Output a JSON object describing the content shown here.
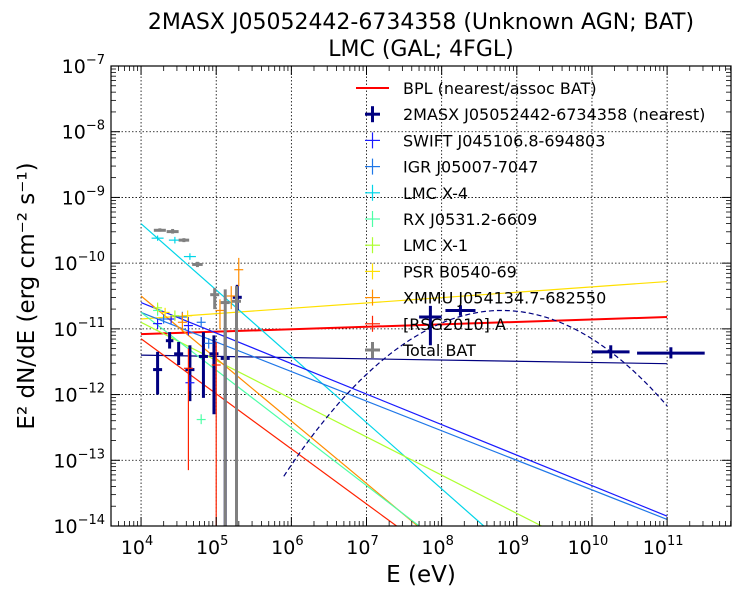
{
  "chart_data": {
    "type": "scatter",
    "title_line1": "2MASX J05052442-6734358 (Unknown AGN; BAT)",
    "title_line2": "LMC (GAL; 4FGL)",
    "xlabel": "E (eV)",
    "ylabel": "E² dN/dE (erg cm⁻² s⁻¹)",
    "xscale": "log",
    "yscale": "log",
    "xlim_exp": [
      3.6,
      11.85
    ],
    "ylim_exp": [
      -14,
      -7
    ],
    "x_ticks": [
      {
        "exp": 4,
        "label": "10",
        "sup": "4"
      },
      {
        "exp": 5,
        "label": "10",
        "sup": "5"
      },
      {
        "exp": 6,
        "label": "10",
        "sup": "6"
      },
      {
        "exp": 7,
        "label": "10",
        "sup": "7"
      },
      {
        "exp": 8,
        "label": "10",
        "sup": "8"
      },
      {
        "exp": 9,
        "label": "10",
        "sup": "9"
      },
      {
        "exp": 10,
        "label": "10",
        "sup": "10"
      },
      {
        "exp": 11,
        "label": "10",
        "sup": "11"
      }
    ],
    "y_ticks": [
      {
        "exp": -14,
        "label": "10",
        "sup": "−14"
      },
      {
        "exp": -13,
        "label": "10",
        "sup": "−13"
      },
      {
        "exp": -12,
        "label": "10",
        "sup": "−12"
      },
      {
        "exp": -11,
        "label": "10",
        "sup": "−11"
      },
      {
        "exp": -10,
        "label": "10",
        "sup": "−10"
      },
      {
        "exp": -9,
        "label": "10",
        "sup": "−9"
      },
      {
        "exp": -8,
        "label": "10",
        "sup": "−8"
      },
      {
        "exp": -7,
        "label": "10",
        "sup": "−7"
      }
    ],
    "grid": true,
    "legend_position": "top-right",
    "legend": [
      {
        "label": "BPL (nearest/assoc BAT)",
        "color": "#ff0000",
        "style": "line"
      },
      {
        "label": "2MASX J05052442-6734358 (nearest)",
        "color": "#000080",
        "style": "errbar-bold"
      },
      {
        "label": "SWIFT J045106.8-694803",
        "color": "#1a1aff",
        "style": "errbar"
      },
      {
        "label": "IGR J05007-7047",
        "color": "#1f77e8",
        "style": "errbar"
      },
      {
        "label": "LMC X-4",
        "color": "#00d5e8",
        "style": "errbar"
      },
      {
        "label": "RX J0531.2-6609",
        "color": "#4dffa6",
        "style": "errbar"
      },
      {
        "label": "LMC X-1",
        "color": "#adff2f",
        "style": "errbar"
      },
      {
        "label": "PSR B0540-69",
        "color": "#ffe000",
        "style": "errbar"
      },
      {
        "label": "XMMU J054134.7-682550",
        "color": "#ff8c00",
        "style": "errbar"
      },
      {
        "label": "[RSG2010] A",
        "color": "#ff2200",
        "style": "errbar"
      },
      {
        "label": "Total BAT",
        "color": "#808080",
        "style": "errbar-bold"
      }
    ],
    "lines": [
      {
        "name": "BPL (nearest/assoc BAT)",
        "color": "#ff0000",
        "width": 2,
        "points": [
          [
            4,
            -11.08
          ],
          [
            11,
            -10.82
          ]
        ]
      },
      {
        "name": "2MASX J05052442-6734358 (nearest)",
        "color": "#000080",
        "width": 1.2,
        "points": [
          [
            4,
            -11.4
          ],
          [
            11,
            -11.53
          ]
        ]
      },
      {
        "name": "PSR B0540-69",
        "color": "#ffe000",
        "width": 1.2,
        "points": [
          [
            4,
            -10.85
          ],
          [
            11,
            -10.28
          ]
        ]
      },
      {
        "name": "LMC X-4",
        "color": "#00d5e8",
        "width": 1.2,
        "points": [
          [
            4,
            -9.4
          ],
          [
            8.56,
            -14
          ]
        ]
      },
      {
        "name": "SWIFT J045106.8-694803",
        "color": "#1a1aff",
        "width": 1.2,
        "points": [
          [
            4,
            -10.6
          ],
          [
            11,
            -13.85
          ]
        ]
      },
      {
        "name": "IGR J05007-7047",
        "color": "#1f77e8",
        "width": 1.2,
        "points": [
          [
            4,
            -10.75
          ],
          [
            11,
            -13.9
          ]
        ]
      },
      {
        "name": "LMC X-1",
        "color": "#adff2f",
        "width": 1.2,
        "points": [
          [
            4,
            -10.9
          ],
          [
            9.33,
            -14
          ]
        ]
      },
      {
        "name": "XMMU J054134.7-682550",
        "color": "#ff8c00",
        "width": 1.2,
        "points": [
          [
            4,
            -10.5
          ],
          [
            7.68,
            -14
          ]
        ]
      },
      {
        "name": "RX J0531.2-6609",
        "color": "#4dffa6",
        "width": 1.2,
        "points": [
          [
            4,
            -10.75
          ],
          [
            7.7,
            -14
          ]
        ]
      },
      {
        "name": "[RSG2010] A",
        "color": "#ff2200",
        "width": 1.2,
        "points": [
          [
            4,
            -11.15
          ],
          [
            7.4,
            -14
          ]
        ]
      }
    ],
    "dashed_curve": {
      "name": "4FGL LMC model",
      "color": "#000080",
      "peak_x_exp": 8.8,
      "peak_y_exp": -10.72,
      "curvature": 0.3,
      "x_range_exp": [
        5.9,
        11
      ]
    },
    "points": [
      {
        "series": "2MASX J05052442-6734358 (nearest)",
        "color": "#000080",
        "bold": true,
        "x": 4.22,
        "y": -11.62,
        "xerr": 0.06,
        "ylo": -12.0,
        "yhi": -11.35
      },
      {
        "series": "2MASX J05052442-6734358 (nearest)",
        "color": "#000080",
        "bold": true,
        "x": 4.38,
        "y": -11.18,
        "xerr": 0.05,
        "ylo": -11.3,
        "yhi": -11.05
      },
      {
        "series": "2MASX J05052442-6734358 (nearest)",
        "color": "#000080",
        "bold": true,
        "x": 4.5,
        "y": -11.38,
        "xerr": 0.06,
        "ylo": -11.55,
        "yhi": -11.2
      },
      {
        "series": "2MASX J05052442-6734358 (nearest)",
        "color": "#000080",
        "bold": true,
        "x": 4.65,
        "y": -11.62,
        "xerr": 0.06,
        "ylo": -12.1,
        "yhi": -11.25
      },
      {
        "series": "2MASX J05052442-6734358 (nearest)",
        "color": "#000080",
        "bold": true,
        "x": 4.83,
        "y": -11.42,
        "xerr": 0.06,
        "ylo": -12.05,
        "yhi": -11.05
      },
      {
        "series": "2MASX J05052442-6734358 (nearest)",
        "color": "#000080",
        "bold": true,
        "x": 4.97,
        "y": -11.38,
        "xerr": 0.06,
        "ylo": -12.3,
        "yhi": -11.1
      },
      {
        "series": "2MASX J05052442-6734358 (nearest)",
        "color": "#000080",
        "bold": true,
        "x": 5.12,
        "y": -11.45,
        "xerr": 0.06,
        "ylo": -14,
        "yhi": -11.05
      },
      {
        "series": "2MASX J05052442-6734358 (nearest)",
        "color": "#000080",
        "bold": true,
        "x": 5.28,
        "y": -10.52,
        "xerr": 0.06,
        "ylo": -10.72,
        "yhi": -10.33
      },
      {
        "series": "2MASX J05052442-6734358 (nearest)",
        "color": "#000080",
        "bold": true,
        "x": 7.85,
        "y": -10.82,
        "xerr": 0.15,
        "ylo": -11.25,
        "yhi": -10.65
      },
      {
        "series": "2MASX J05052442-6734358 (nearest)",
        "color": "#000080",
        "bold": true,
        "x": 8.25,
        "y": -10.72,
        "xerr": 0.2,
        "ylo": -10.8,
        "yhi": -10.64
      },
      {
        "series": "2MASX J05052442-6734358 (nearest)",
        "color": "#000080",
        "bold": true,
        "x": 10.25,
        "y": -11.35,
        "xerr": 0.25,
        "ylo": -11.45,
        "yhi": -11.25
      },
      {
        "series": "2MASX J05052442-6734358 (nearest)",
        "color": "#000080",
        "bold": true,
        "x": 11.05,
        "y": -11.37,
        "xerr": 0.45,
        "ylo": -11.45,
        "yhi": -11.28
      },
      {
        "series": "SWIFT J045106.8-694803",
        "color": "#1a1aff",
        "bold": false,
        "x": 4.22,
        "y": -10.92,
        "xerr": 0.06,
        "ylo": -11.0,
        "yhi": -10.85
      },
      {
        "series": "SWIFT J045106.8-694803",
        "color": "#1a1aff",
        "bold": false,
        "x": 4.4,
        "y": -10.85,
        "xerr": 0.06,
        "ylo": -10.92,
        "yhi": -10.78
      },
      {
        "series": "SWIFT J045106.8-694803",
        "color": "#1a1aff",
        "bold": false,
        "x": 4.63,
        "y": -10.95,
        "xerr": 0.06,
        "ylo": -11.1,
        "yhi": -10.82
      },
      {
        "series": "SWIFT J045106.8-694803",
        "color": "#1a1aff",
        "bold": false,
        "x": 4.65,
        "y": -11.82,
        "xerr": 0.06,
        "ylo": -11.95,
        "yhi": -11.7
      },
      {
        "series": "IGR J05007-7047",
        "color": "#1f77e8",
        "bold": false,
        "x": 4.3,
        "y": -10.85,
        "xerr": 0.06,
        "ylo": -10.92,
        "yhi": -10.78
      },
      {
        "series": "IGR J05007-7047",
        "color": "#1f77e8",
        "bold": false,
        "x": 4.55,
        "y": -10.82,
        "xerr": 0.06,
        "ylo": -10.9,
        "yhi": -10.74
      },
      {
        "series": "IGR J05007-7047",
        "color": "#1f77e8",
        "bold": false,
        "x": 4.8,
        "y": -10.9,
        "xerr": 0.06,
        "ylo": -10.98,
        "yhi": -10.82
      },
      {
        "series": "IGR J05007-7047",
        "color": "#1f77e8",
        "bold": false,
        "x": 4.9,
        "y": -11.22,
        "xerr": 0.06,
        "ylo": -11.3,
        "yhi": -11.14
      },
      {
        "series": "LMC X-4",
        "color": "#00d5e8",
        "bold": false,
        "x": 4.22,
        "y": -9.62,
        "xerr": 0.08,
        "ylo": -9.66,
        "yhi": -9.58
      },
      {
        "series": "LMC X-4",
        "color": "#00d5e8",
        "bold": false,
        "x": 4.45,
        "y": -9.65,
        "xerr": 0.08,
        "ylo": -9.7,
        "yhi": -9.6
      },
      {
        "series": "LMC X-4",
        "color": "#00d5e8",
        "bold": false,
        "x": 4.65,
        "y": -9.9,
        "xerr": 0.08,
        "ylo": -9.95,
        "yhi": -9.85
      },
      {
        "series": "RX J0531.2-6609",
        "color": "#4dffa6",
        "bold": false,
        "x": 4.22,
        "y": -10.72,
        "xerr": 0.06,
        "ylo": -10.8,
        "yhi": -10.64
      },
      {
        "series": "RX J0531.2-6609",
        "color": "#4dffa6",
        "bold": false,
        "x": 4.8,
        "y": -12.38,
        "xerr": 0.06,
        "ylo": -12.45,
        "yhi": -12.3
      },
      {
        "series": "LMC X-1",
        "color": "#adff2f",
        "bold": false,
        "x": 4.22,
        "y": -10.68,
        "xerr": 0.06,
        "ylo": -10.75,
        "yhi": -10.6
      },
      {
        "series": "LMC X-1",
        "color": "#adff2f",
        "bold": false,
        "x": 4.45,
        "y": -10.8,
        "xerr": 0.06,
        "ylo": -10.88,
        "yhi": -10.72
      },
      {
        "series": "PSR B0540-69",
        "color": "#ffe000",
        "bold": false,
        "x": 4.32,
        "y": -10.75,
        "xerr": 0.06,
        "ylo": -10.82,
        "yhi": -10.68
      },
      {
        "series": "PSR B0540-69",
        "color": "#ffe000",
        "bold": false,
        "x": 4.62,
        "y": -10.8,
        "xerr": 0.06,
        "ylo": -10.88,
        "yhi": -10.72
      },
      {
        "series": "XMMU J054134.7-682550",
        "color": "#ff8c00",
        "bold": false,
        "x": 4.55,
        "y": -10.9,
        "xerr": 0.06,
        "ylo": -11.05,
        "yhi": -10.75
      },
      {
        "series": "XMMU J054134.7-682550",
        "color": "#ff8c00",
        "bold": false,
        "x": 5.05,
        "y": -10.72,
        "xerr": 0.06,
        "ylo": -11.0,
        "yhi": -10.55
      },
      {
        "series": "XMMU J054134.7-682550",
        "color": "#ff8c00",
        "bold": false,
        "x": 5.2,
        "y": -10.5,
        "xerr": 0.06,
        "ylo": -10.7,
        "yhi": -10.35
      },
      {
        "series": "XMMU J054134.7-682550",
        "color": "#ff8c00",
        "bold": false,
        "x": 5.3,
        "y": -10.1,
        "xerr": 0.06,
        "ylo": -10.35,
        "yhi": -9.92
      },
      {
        "series": "[RSG2010] A",
        "color": "#ff2200",
        "bold": false,
        "x": 4.63,
        "y": -11.6,
        "xerr": 0.06,
        "ylo": -13.15,
        "yhi": -11.3
      },
      {
        "series": "[RSG2010] A",
        "color": "#ff2200",
        "bold": false,
        "x": 5.0,
        "y": -11.55,
        "xerr": 0.06,
        "ylo": -14,
        "yhi": -11.2
      },
      {
        "series": "Total BAT",
        "color": "#808080",
        "bold": true,
        "x": 4.25,
        "y": -9.5,
        "xerr": 0.08,
        "ylo": -9.52,
        "yhi": -9.47
      },
      {
        "series": "Total BAT",
        "color": "#808080",
        "bold": true,
        "x": 4.42,
        "y": -9.52,
        "xerr": 0.08,
        "ylo": -9.55,
        "yhi": -9.48
      },
      {
        "series": "Total BAT",
        "color": "#808080",
        "bold": true,
        "x": 4.57,
        "y": -9.65,
        "xerr": 0.07,
        "ylo": -9.68,
        "yhi": -9.62
      },
      {
        "series": "Total BAT",
        "color": "#808080",
        "bold": true,
        "x": 4.75,
        "y": -10.02,
        "xerr": 0.07,
        "ylo": -10.06,
        "yhi": -9.98
      },
      {
        "series": "Total BAT",
        "color": "#808080",
        "bold": true,
        "x": 4.98,
        "y": -10.48,
        "xerr": 0.06,
        "ylo": -10.7,
        "yhi": -10.38
      },
      {
        "series": "Total BAT",
        "color": "#808080",
        "bold": true,
        "x": 5.12,
        "y": -10.6,
        "xerr": 0.06,
        "ylo": -14,
        "yhi": -10.4
      },
      {
        "series": "Total BAT",
        "color": "#808080",
        "bold": true,
        "x": 5.27,
        "y": -10.58,
        "xerr": 0.06,
        "ylo": -14,
        "yhi": -10.35
      }
    ]
  }
}
